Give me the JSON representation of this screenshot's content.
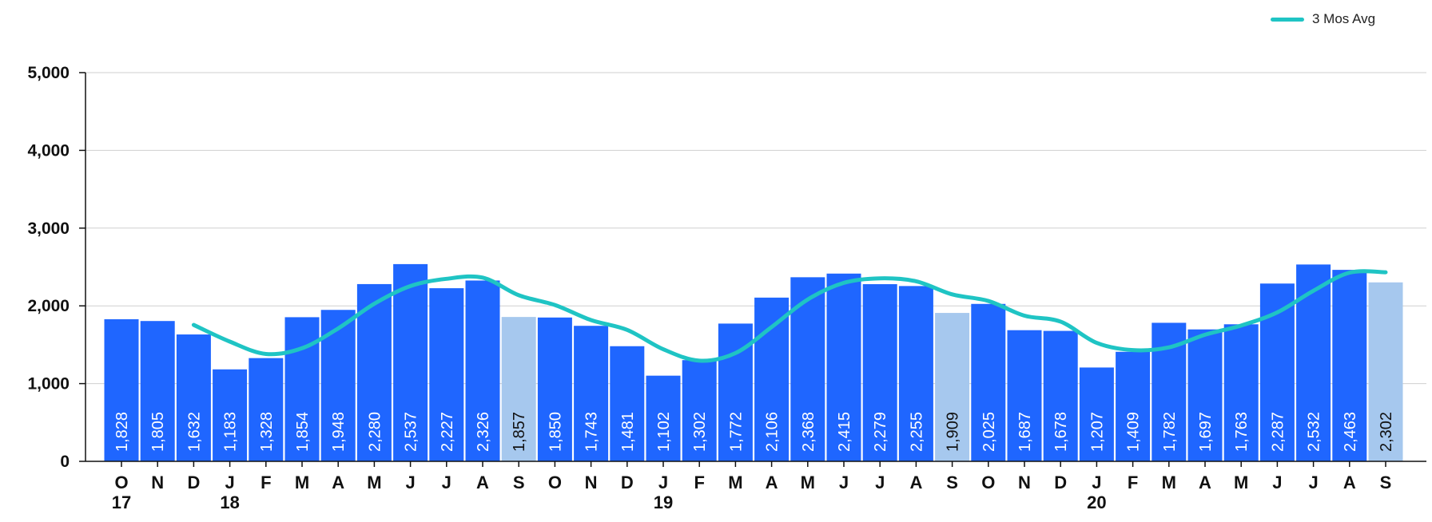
{
  "legend": {
    "line_label": "3 Mos Avg",
    "line_color": "#1fc4c4"
  },
  "colors": {
    "bar": "#1f66ff",
    "bar_highlight": "#a6c8ee",
    "label_on_bar": "#ffffff",
    "label_on_highlight": "#111111"
  },
  "chart_data": {
    "type": "bar",
    "title": "",
    "xlabel": "",
    "ylabel": "",
    "ylim": [
      0,
      5000
    ],
    "yticks": [
      0,
      1000,
      2000,
      3000,
      4000,
      5000
    ],
    "ytick_labels": [
      "0",
      "1,000",
      "2,000",
      "3,000",
      "4,000",
      "5,000"
    ],
    "grid": true,
    "legend_position": "top-right",
    "categories": [
      "O",
      "N",
      "D",
      "J",
      "F",
      "M",
      "A",
      "M",
      "J",
      "J",
      "A",
      "S",
      "O",
      "N",
      "D",
      "J",
      "F",
      "M",
      "A",
      "M",
      "J",
      "J",
      "A",
      "S",
      "O",
      "N",
      "D",
      "J",
      "F",
      "M",
      "A",
      "M",
      "J",
      "J",
      "A",
      "S"
    ],
    "year_labels": [
      {
        "index": 0,
        "label": "17"
      },
      {
        "index": 3,
        "label": "18"
      },
      {
        "index": 15,
        "label": "19"
      },
      {
        "index": 27,
        "label": "20"
      }
    ],
    "series": [
      {
        "type": "bar",
        "values": [
          1828,
          1805,
          1632,
          1183,
          1328,
          1854,
          1948,
          2280,
          2537,
          2227,
          2326,
          1857,
          1850,
          1743,
          1481,
          1102,
          1302,
          1772,
          2106,
          2368,
          2415,
          2279,
          2255,
          1909,
          2025,
          1687,
          1678,
          1207,
          1409,
          1782,
          1697,
          1763,
          2287,
          2532,
          2463,
          2302
        ],
        "data_labels": [
          "1,828",
          "1,805",
          "1,632",
          "1,183",
          "1,328",
          "1,854",
          "1,948",
          "2,280",
          "2,537",
          "2,227",
          "2,326",
          "1,857",
          "1,850",
          "1,743",
          "1,481",
          "1,102",
          "1,302",
          "1,772",
          "2,106",
          "2,368",
          "2,415",
          "2,279",
          "2,255",
          "1,909",
          "2,025",
          "1,687",
          "1,678",
          "1,207",
          "1,409",
          "1,782",
          "1,697",
          "1,763",
          "2,287",
          "2,532",
          "2,463",
          "2,302"
        ],
        "highlighted_indices": [
          11,
          23,
          35
        ]
      },
      {
        "name": "3 Mos Avg",
        "type": "line",
        "values": [
          null,
          null,
          1755,
          1540,
          1381,
          1455,
          1710,
          2027,
          2255,
          2348,
          2363,
          2137,
          2011,
          1817,
          1691,
          1442,
          1295,
          1392,
          1727,
          2082,
          2296,
          2354,
          2316,
          2148,
          2063,
          1874,
          1797,
          1524,
          1431,
          1466,
          1629,
          1747,
          1916,
          2194,
          2427,
          2432
        ]
      }
    ]
  }
}
